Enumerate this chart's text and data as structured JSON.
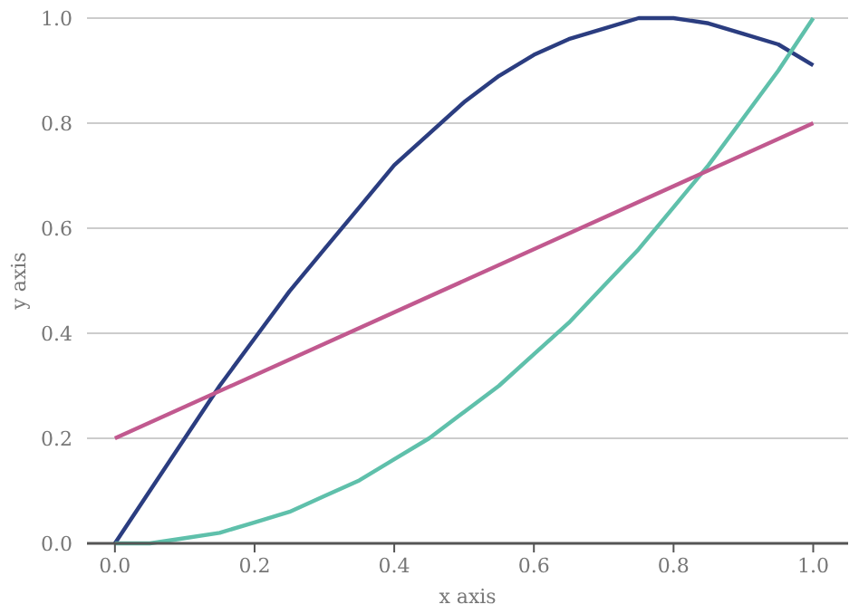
{
  "chart_data": {
    "type": "line",
    "xlabel": "x axis",
    "ylabel": "y axis",
    "xlim": [
      -0.04,
      1.05
    ],
    "ylim": [
      0,
      1
    ],
    "xticks": [
      {
        "value": 0,
        "label": "0.0"
      },
      {
        "value": 0.2,
        "label": "0.2"
      },
      {
        "value": 0.4,
        "label": "0.4"
      },
      {
        "value": 0.6,
        "label": "0.6"
      },
      {
        "value": 0.8,
        "label": "0.8"
      },
      {
        "value": 1,
        "label": "1.0"
      }
    ],
    "yticks": [
      {
        "value": 0,
        "label": "0.0"
      },
      {
        "value": 0.2,
        "label": "0.2"
      },
      {
        "value": 0.4,
        "label": "0.4"
      },
      {
        "value": 0.6,
        "label": "0.6"
      },
      {
        "value": 0.8,
        "label": "0.8"
      },
      {
        "value": 1,
        "label": "1.0"
      }
    ],
    "grid": "y",
    "line_style": "solid",
    "marker": "none",
    "series": [
      {
        "color": "#2b3d80",
        "x": [
          0,
          0.05,
          0.1,
          0.15,
          0.2,
          0.25,
          0.3,
          0.35,
          0.4,
          0.45,
          0.5,
          0.55,
          0.6,
          0.65,
          0.7,
          0.75,
          0.8,
          0.85,
          0.9,
          0.95,
          1
        ],
        "values": [
          0,
          0.1,
          0.2,
          0.3,
          0.39,
          0.48,
          0.56,
          0.64,
          0.72,
          0.78,
          0.84,
          0.89,
          0.93,
          0.96,
          0.98,
          1,
          1,
          0.99,
          0.97,
          0.95,
          0.91
        ]
      },
      {
        "color": "#5fc0ab",
        "x": [
          0,
          0.05,
          0.1,
          0.15,
          0.2,
          0.25,
          0.3,
          0.35,
          0.4,
          0.45,
          0.5,
          0.55,
          0.6,
          0.65,
          0.7,
          0.75,
          0.8,
          0.85,
          0.9,
          0.95,
          1
        ],
        "values": [
          0,
          0,
          0.01,
          0.02,
          0.04,
          0.06,
          0.09,
          0.12,
          0.16,
          0.2,
          0.25,
          0.3,
          0.36,
          0.42,
          0.49,
          0.56,
          0.64,
          0.72,
          0.81,
          0.9,
          1
        ]
      },
      {
        "color": "#c1598f",
        "x": [
          0,
          1
        ],
        "values": [
          0.2,
          0.8
        ]
      }
    ]
  }
}
